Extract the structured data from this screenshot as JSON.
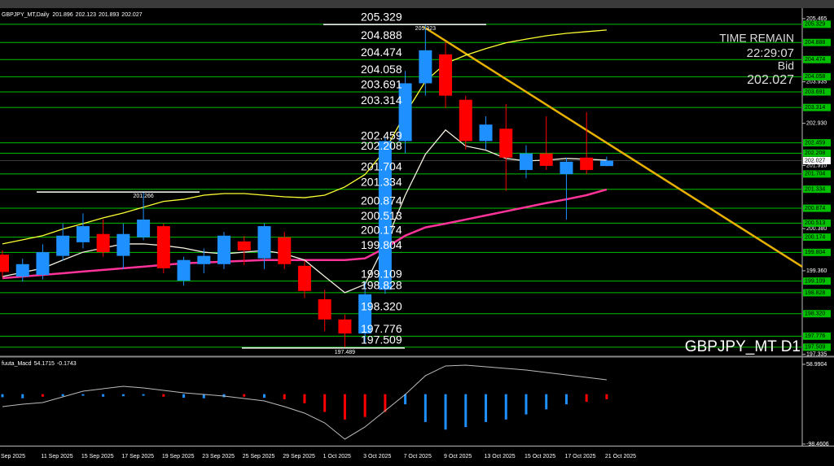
{
  "header": {
    "symbol": "GBPJPY_MT,Daily"
  },
  "chart_data": [
    {
      "type": "candlestick",
      "categories": [
        "Sep 2025",
        null,
        "11 Sep 2025",
        null,
        "15 Sep 2025",
        null,
        "17 Sep 2025",
        null,
        "19 Sep 2025",
        null,
        "23 Sep 2025",
        null,
        "25 Sep 2025",
        null,
        "29 Sep 2025",
        null,
        "1 Oct 2025",
        null,
        "3 Oct 2025",
        null,
        "7 Oct 2025",
        null,
        "9 Oct 2025",
        null,
        "13 Oct 2025",
        null,
        "15 Oct 2025",
        null,
        "17 Oct 2025",
        null,
        "21 Oct 2025"
      ],
      "open": [
        199.75,
        199.22,
        199.26,
        199.72,
        200.05,
        200.25,
        199.72,
        200.17,
        200.44,
        199.12,
        199.52,
        199.52,
        200.07,
        199.66,
        200.17,
        199.48,
        198.67,
        198.18,
        197.84,
        198.9,
        202.5,
        203.9,
        204.6,
        203.5,
        202.5,
        202.8,
        201.8,
        202.2,
        201.7,
        202.1,
        201.896
      ],
      "high": [
        199.85,
        199.65,
        200.0,
        200.5,
        200.75,
        200.6,
        200.5,
        201.266,
        200.5,
        199.7,
        199.9,
        200.3,
        200.2,
        200.5,
        200.3,
        199.6,
        198.9,
        198.3,
        199.1,
        202.6,
        204.2,
        205.323,
        204.9,
        203.6,
        203.1,
        203.4,
        202.4,
        203.1,
        202.1,
        203.2,
        202.123
      ],
      "low": [
        199.2,
        199.1,
        199.15,
        199.6,
        199.9,
        199.7,
        199.4,
        200.1,
        199.3,
        199.0,
        199.3,
        199.4,
        199.5,
        199.4,
        199.4,
        198.7,
        197.9,
        197.489,
        197.6,
        198.8,
        202.2,
        203.6,
        203.3,
        202.3,
        202.3,
        201.3,
        201.6,
        201.8,
        200.6,
        201.7,
        201.893
      ],
      "close": [
        199.33,
        199.52,
        199.81,
        200.21,
        200.44,
        199.81,
        200.25,
        200.6,
        199.42,
        199.62,
        199.72,
        200.21,
        199.85,
        200.44,
        199.52,
        198.87,
        198.18,
        197.84,
        198.79,
        202.5,
        203.9,
        204.7,
        203.6,
        202.5,
        202.9,
        202.1,
        202.2,
        201.9,
        202.0,
        201.8,
        202.027
      ],
      "up_color": "#1e90ff",
      "down_color": "#ff0000",
      "ylim": [
        197.31,
        205.72
      ],
      "yticks": [
        205.465,
        203.935,
        {
          "value": 202.93,
          "label": "202.930"
        },
        {
          "value": 201.91,
          "label": "201.910"
        },
        {
          "value": 200.38,
          "label": "200.380"
        },
        {
          "value": 199.36,
          "label": "199.360"
        },
        197.335
      ],
      "levels": [
        205.329,
        204.888,
        204.474,
        204.058,
        203.691,
        203.314,
        202.459,
        202.208,
        201.704,
        201.334,
        200.874,
        200.513,
        200.174,
        199.804,
        199.109,
        198.828,
        {
          "value": 198.32,
          "label": "198.320"
        },
        197.776,
        197.509
      ],
      "level_color": "#00c000",
      "lines": [
        {
          "color": "#ffff33",
          "values": [
            200.01,
            200.11,
            200.21,
            200.37,
            200.5,
            200.64,
            200.76,
            200.9,
            201.04,
            201.09,
            201.19,
            201.23,
            201.23,
            201.19,
            201.15,
            201.13,
            201.19,
            201.39,
            201.69,
            202.28,
            203.16,
            203.95,
            204.38,
            204.58,
            204.74,
            204.88,
            204.97,
            205.05,
            205.11,
            205.15,
            205.19
          ]
        },
        {
          "color": "#ff3399",
          "values": [
            199.18,
            199.22,
            199.26,
            199.3,
            199.34,
            199.38,
            199.42,
            199.46,
            199.5,
            199.54,
            199.56,
            199.58,
            199.6,
            199.62,
            199.62,
            199.62,
            199.62,
            199.62,
            199.66,
            199.91,
            200.21,
            200.41,
            200.5,
            200.6,
            200.7,
            200.8,
            200.9,
            201.0,
            201.09,
            201.19,
            201.33
          ]
        },
        {
          "color": "#f5f0e0",
          "values": [
            199.22,
            199.32,
            199.42,
            199.62,
            199.81,
            199.91,
            200.01,
            200.01,
            199.97,
            199.91,
            199.81,
            199.77,
            199.81,
            199.85,
            199.77,
            199.62,
            199.22,
            198.83,
            199.03,
            200.01,
            201.19,
            202.18,
            202.77,
            202.38,
            202.28,
            202.08,
            202.02,
            202.04,
            202.08,
            202.06,
            202.04
          ]
        }
      ],
      "timer": {
        "title": "TIME REMAIN",
        "value": "22:29:07",
        "label": "Bid"
      },
      "watermark": "GBPJPY_MT D1"
    },
    {
      "type": "bar",
      "title": "fuuta_Macd",
      "main": 54.1715,
      "signal": -0.1743,
      "ylim": [
        -101.7,
        71.8
      ],
      "yticks": [
        58.9904,
        -98.4606
      ],
      "values": [
        -6,
        -8,
        -5,
        -4,
        -3,
        -5,
        -4,
        -3,
        -5,
        -7,
        -8,
        -6,
        -5,
        -7,
        -10,
        -18,
        -35,
        -50,
        -45,
        -35,
        -20,
        -55,
        -70,
        -65,
        -55,
        -50,
        -40,
        -30,
        -20,
        -15,
        -10
      ],
      "colors": [
        "#1e90ff",
        "#1e90ff",
        "#ff0000",
        "#1e90ff",
        "#1e90ff",
        "#1e90ff",
        "#1e90ff",
        "#1e90ff",
        "#ff0000",
        "#1e90ff",
        "#1e90ff",
        "#1e90ff",
        "#ff0000",
        "#1e90ff",
        "#ff0000",
        "#ff0000",
        "#ff0000",
        "#ff0000",
        "#ff0000",
        "#ff0000",
        "#1e90ff",
        "#1e90ff",
        "#1e90ff",
        "#1e90ff",
        "#1e90ff",
        "#1e90ff",
        "#1e90ff",
        "#1e90ff",
        "#1e90ff",
        "#ff0000",
        "#ff0000"
      ],
      "line": [
        -24.6,
        -19.7,
        -16.5,
        -5.3,
        5.9,
        10.8,
        15.6,
        12.4,
        7.6,
        2.8,
        -0.5,
        -3.7,
        -8.5,
        -13.3,
        -24.6,
        -37.4,
        -56.7,
        -88.8,
        -64.7,
        -32.6,
        -0.5,
        36.5,
        55.8,
        57.4,
        54.2,
        51.0,
        47.7,
        42.9,
        38.1,
        33.3,
        28.5
      ],
      "line_color": "#bbbbbb"
    }
  ]
}
